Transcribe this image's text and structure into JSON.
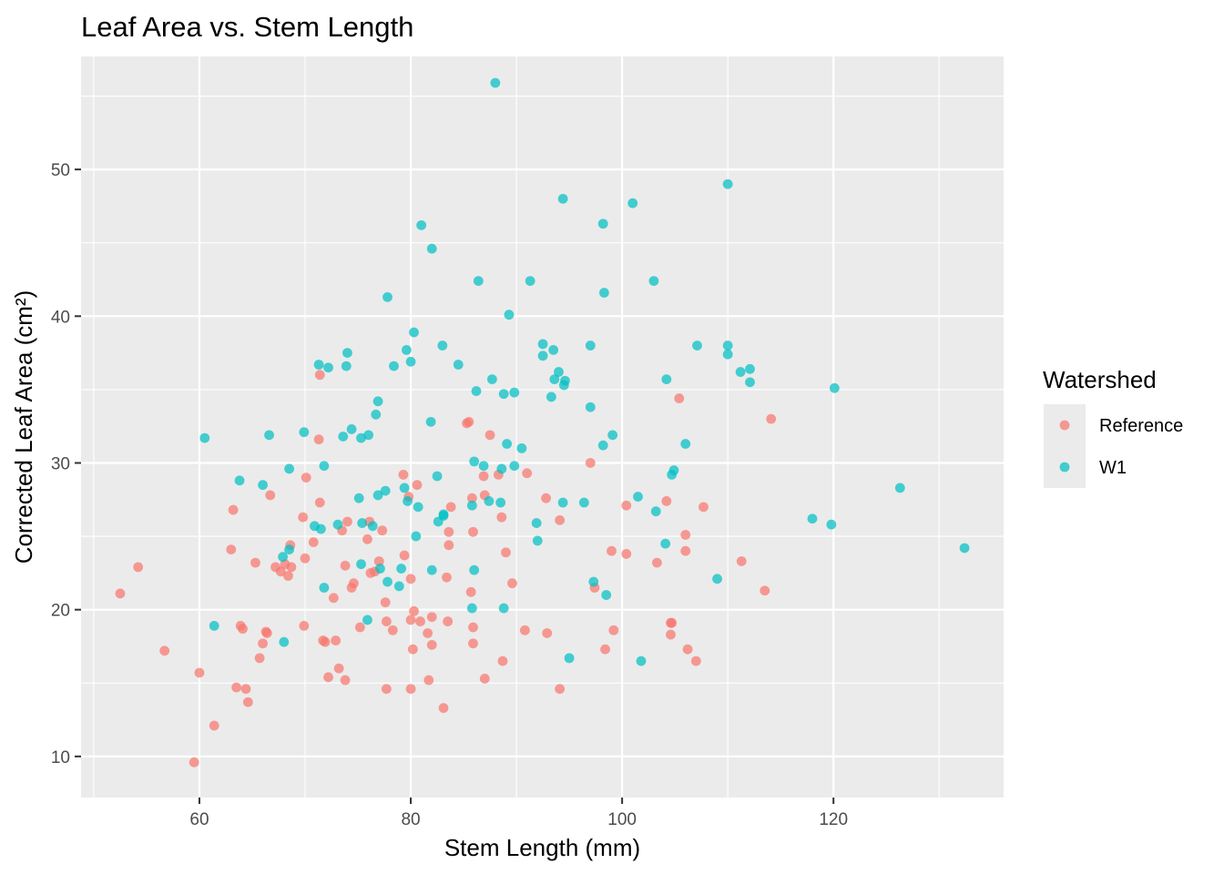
{
  "chart_data": {
    "type": "scatter",
    "title": "Leaf Area vs. Stem Length",
    "xlabel": "Stem Length (mm)",
    "ylabel": "Corrected Leaf Area (cm²)",
    "xlim": [
      48.8,
      136.1
    ],
    "ylim": [
      7.2,
      57.7
    ],
    "x_ticks": [
      60,
      80,
      100,
      120
    ],
    "y_ticks": [
      10,
      20,
      30,
      40,
      50
    ],
    "x_tick_labels": [
      "60",
      "80",
      "100",
      "120"
    ],
    "y_tick_labels": [
      "10",
      "20",
      "30",
      "40",
      "50"
    ],
    "grid": true,
    "legend": {
      "title": "Watershed",
      "placement": "right"
    },
    "series": [
      {
        "name": "Reference",
        "color": "#F8766D",
        "points": [
          [
            52.5,
            21.1
          ],
          [
            54.2,
            22.9
          ],
          [
            56.7,
            17.2
          ],
          [
            59.5,
            9.6
          ],
          [
            60.0,
            15.7
          ],
          [
            61.4,
            12.1
          ],
          [
            63.0,
            24.1
          ],
          [
            63.2,
            26.8
          ],
          [
            63.5,
            14.7
          ],
          [
            63.9,
            18.9
          ],
          [
            64.1,
            18.7
          ],
          [
            64.4,
            14.6
          ],
          [
            64.6,
            13.7
          ],
          [
            65.3,
            23.2
          ],
          [
            65.7,
            16.7
          ],
          [
            66.0,
            17.7
          ],
          [
            66.3,
            18.5
          ],
          [
            66.4,
            18.4
          ],
          [
            66.7,
            27.8
          ],
          [
            67.2,
            22.9
          ],
          [
            67.7,
            22.6
          ],
          [
            68.1,
            23.1
          ],
          [
            68.4,
            22.3
          ],
          [
            68.6,
            24.4
          ],
          [
            68.7,
            22.9
          ],
          [
            69.8,
            26.3
          ],
          [
            69.9,
            18.9
          ],
          [
            70.0,
            23.5
          ],
          [
            70.1,
            29.0
          ],
          [
            70.8,
            24.6
          ],
          [
            71.3,
            31.6
          ],
          [
            71.4,
            36.0
          ],
          [
            71.4,
            27.3
          ],
          [
            71.7,
            17.9
          ],
          [
            71.9,
            17.8
          ],
          [
            72.2,
            15.4
          ],
          [
            72.7,
            20.8
          ],
          [
            72.9,
            17.9
          ],
          [
            73.2,
            16.0
          ],
          [
            73.5,
            25.4
          ],
          [
            73.8,
            15.2
          ],
          [
            73.8,
            23.0
          ],
          [
            74.0,
            26.0
          ],
          [
            74.4,
            21.5
          ],
          [
            74.6,
            21.8
          ],
          [
            75.2,
            18.8
          ],
          [
            75.9,
            24.8
          ],
          [
            76.1,
            26.0
          ],
          [
            76.2,
            22.5
          ],
          [
            76.6,
            22.6
          ],
          [
            77.0,
            23.3
          ],
          [
            77.3,
            25.4
          ],
          [
            77.6,
            20.5
          ],
          [
            77.7,
            19.2
          ],
          [
            77.7,
            14.6
          ],
          [
            78.3,
            18.6
          ],
          [
            79.3,
            29.2
          ],
          [
            79.4,
            23.7
          ],
          [
            79.8,
            27.7
          ],
          [
            80.0,
            22.1
          ],
          [
            80.0,
            19.3
          ],
          [
            80.0,
            14.6
          ],
          [
            80.2,
            17.3
          ],
          [
            80.3,
            19.9
          ],
          [
            80.6,
            28.5
          ],
          [
            80.9,
            19.2
          ],
          [
            81.6,
            18.4
          ],
          [
            81.7,
            15.2
          ],
          [
            82.0,
            17.6
          ],
          [
            82.0,
            19.5
          ],
          [
            83.1,
            13.3
          ],
          [
            83.4,
            22.2
          ],
          [
            83.5,
            19.2
          ],
          [
            83.6,
            24.4
          ],
          [
            83.6,
            25.3
          ],
          [
            83.8,
            27.0
          ],
          [
            85.3,
            32.7
          ],
          [
            85.5,
            32.8
          ],
          [
            85.7,
            21.2
          ],
          [
            85.8,
            27.6
          ],
          [
            85.9,
            18.8
          ],
          [
            85.9,
            17.7
          ],
          [
            85.9,
            25.3
          ],
          [
            86.9,
            29.1
          ],
          [
            87.0,
            27.8
          ],
          [
            87.0,
            15.3
          ],
          [
            87.5,
            31.9
          ],
          [
            88.3,
            29.2
          ],
          [
            88.6,
            26.3
          ],
          [
            88.7,
            16.5
          ],
          [
            89.0,
            23.9
          ],
          [
            89.6,
            21.8
          ],
          [
            90.8,
            18.6
          ],
          [
            91.0,
            29.3
          ],
          [
            92.8,
            27.6
          ],
          [
            92.9,
            18.4
          ],
          [
            94.1,
            26.1
          ],
          [
            94.1,
            14.6
          ],
          [
            97.0,
            30.0
          ],
          [
            97.4,
            21.5
          ],
          [
            98.4,
            17.3
          ],
          [
            99.0,
            24.0
          ],
          [
            99.2,
            18.6
          ],
          [
            100.4,
            27.1
          ],
          [
            100.4,
            23.8
          ],
          [
            103.3,
            23.2
          ],
          [
            104.2,
            27.4
          ],
          [
            104.6,
            19.1
          ],
          [
            104.6,
            18.3
          ],
          [
            104.7,
            19.1
          ],
          [
            105.4,
            34.4
          ],
          [
            106.0,
            24.0
          ],
          [
            106.0,
            25.1
          ],
          [
            106.2,
            17.3
          ],
          [
            107.0,
            16.5
          ],
          [
            107.7,
            27.0
          ],
          [
            111.3,
            23.3
          ],
          [
            113.5,
            21.3
          ],
          [
            114.1,
            33.0
          ]
        ]
      },
      {
        "name": "W1",
        "color": "#00BFC4",
        "points": [
          [
            60.5,
            31.7
          ],
          [
            61.4,
            18.9
          ],
          [
            63.8,
            28.8
          ],
          [
            66.0,
            28.5
          ],
          [
            66.6,
            31.9
          ],
          [
            67.9,
            23.6
          ],
          [
            68.0,
            17.8
          ],
          [
            68.5,
            29.6
          ],
          [
            68.5,
            24.1
          ],
          [
            69.9,
            32.1
          ],
          [
            70.9,
            25.7
          ],
          [
            71.3,
            36.7
          ],
          [
            71.5,
            25.5
          ],
          [
            71.8,
            29.8
          ],
          [
            71.8,
            21.5
          ],
          [
            72.2,
            36.5
          ],
          [
            73.1,
            25.8
          ],
          [
            73.6,
            31.8
          ],
          [
            73.9,
            36.6
          ],
          [
            74.0,
            37.5
          ],
          [
            74.4,
            32.3
          ],
          [
            75.1,
            27.6
          ],
          [
            75.3,
            31.7
          ],
          [
            75.3,
            23.1
          ],
          [
            75.4,
            25.9
          ],
          [
            75.9,
            19.3
          ],
          [
            76.0,
            31.9
          ],
          [
            76.4,
            25.7
          ],
          [
            76.7,
            33.3
          ],
          [
            76.9,
            34.2
          ],
          [
            76.9,
            27.8
          ],
          [
            77.1,
            22.8
          ],
          [
            77.6,
            28.1
          ],
          [
            77.8,
            41.3
          ],
          [
            77.8,
            21.9
          ],
          [
            78.4,
            36.6
          ],
          [
            78.9,
            21.6
          ],
          [
            79.1,
            22.8
          ],
          [
            79.4,
            28.3
          ],
          [
            79.6,
            37.7
          ],
          [
            79.7,
            27.4
          ],
          [
            80.0,
            36.9
          ],
          [
            80.3,
            38.9
          ],
          [
            80.5,
            25.0
          ],
          [
            80.7,
            27.0
          ],
          [
            81.0,
            46.2
          ],
          [
            81.9,
            32.8
          ],
          [
            82.0,
            22.7
          ],
          [
            82.0,
            44.6
          ],
          [
            82.5,
            29.1
          ],
          [
            82.6,
            26.0
          ],
          [
            83.0,
            38.0
          ],
          [
            83.1,
            26.4
          ],
          [
            83.1,
            26.5
          ],
          [
            84.5,
            36.7
          ],
          [
            85.8,
            20.1
          ],
          [
            85.8,
            27.1
          ],
          [
            86.0,
            30.1
          ],
          [
            86.0,
            22.7
          ],
          [
            86.2,
            34.9
          ],
          [
            86.4,
            42.4
          ],
          [
            86.9,
            29.8
          ],
          [
            87.4,
            27.4
          ],
          [
            87.7,
            35.7
          ],
          [
            88.0,
            55.9
          ],
          [
            88.5,
            27.3
          ],
          [
            88.6,
            29.6
          ],
          [
            88.8,
            20.1
          ],
          [
            88.8,
            34.7
          ],
          [
            89.1,
            31.3
          ],
          [
            89.3,
            40.1
          ],
          [
            89.8,
            34.8
          ],
          [
            89.8,
            29.8
          ],
          [
            90.5,
            31.0
          ],
          [
            91.3,
            42.4
          ],
          [
            91.9,
            25.9
          ],
          [
            92.0,
            24.7
          ],
          [
            92.5,
            38.1
          ],
          [
            92.5,
            37.3
          ],
          [
            93.3,
            34.5
          ],
          [
            93.5,
            37.7
          ],
          [
            93.6,
            35.7
          ],
          [
            94.0,
            36.2
          ],
          [
            94.4,
            48.0
          ],
          [
            94.4,
            27.3
          ],
          [
            94.6,
            35.6
          ],
          [
            94.5,
            35.3
          ],
          [
            95.0,
            16.7
          ],
          [
            96.4,
            27.3
          ],
          [
            97.0,
            38.0
          ],
          [
            97.0,
            33.8
          ],
          [
            97.3,
            21.9
          ],
          [
            98.2,
            46.3
          ],
          [
            98.2,
            31.2
          ],
          [
            98.3,
            41.6
          ],
          [
            98.5,
            21.0
          ],
          [
            99.1,
            31.9
          ],
          [
            101.0,
            47.7
          ],
          [
            101.5,
            27.7
          ],
          [
            101.8,
            16.5
          ],
          [
            103.0,
            42.4
          ],
          [
            103.2,
            26.7
          ],
          [
            104.1,
            24.5
          ],
          [
            104.2,
            35.7
          ],
          [
            104.7,
            29.2
          ],
          [
            104.9,
            29.5
          ],
          [
            106.0,
            31.3
          ],
          [
            107.1,
            38.0
          ],
          [
            109.0,
            22.1
          ],
          [
            110.0,
            49.0
          ],
          [
            110.0,
            38.0
          ],
          [
            110.0,
            37.4
          ],
          [
            111.2,
            36.2
          ],
          [
            112.1,
            36.4
          ],
          [
            112.1,
            35.5
          ],
          [
            118.0,
            26.2
          ],
          [
            119.8,
            25.8
          ],
          [
            120.1,
            35.1
          ],
          [
            126.3,
            28.3
          ],
          [
            132.4,
            24.2
          ]
        ]
      }
    ]
  }
}
